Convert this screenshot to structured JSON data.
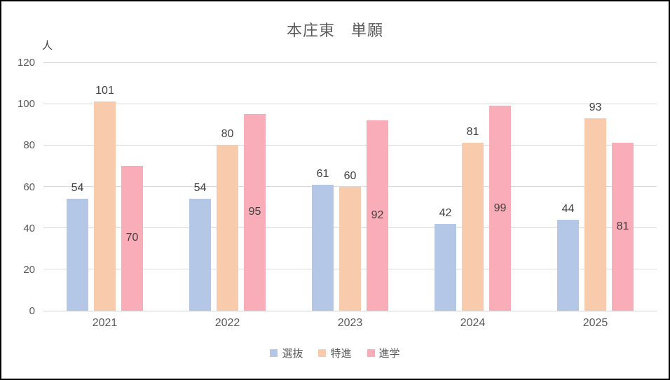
{
  "chart_data": {
    "type": "bar",
    "title": "本庄東　単願",
    "xlabel": "",
    "ylabel": "人",
    "categories": [
      "2021",
      "2022",
      "2023",
      "2024",
      "2025"
    ],
    "series": [
      {
        "name": "選抜",
        "color": "#b4c7e7",
        "values": [
          54,
          54,
          61,
          42,
          44
        ],
        "label_position": "outside-end"
      },
      {
        "name": "特進",
        "color": "#f8cbad",
        "values": [
          101,
          80,
          60,
          81,
          93
        ],
        "label_position": "outside-end"
      },
      {
        "name": "進学",
        "color": "#f9adb9",
        "values": [
          70,
          95,
          92,
          99,
          81
        ],
        "label_position": "inside-center"
      }
    ],
    "ylim": [
      0,
      120
    ],
    "ytick_interval": 20,
    "grid": true,
    "gridline_color": "#d9d9d9",
    "axis_line_color": "#d3d3d3",
    "text_color_labels": "#404040",
    "text_color_ticks": "#595959",
    "legend_position": "bottom"
  }
}
